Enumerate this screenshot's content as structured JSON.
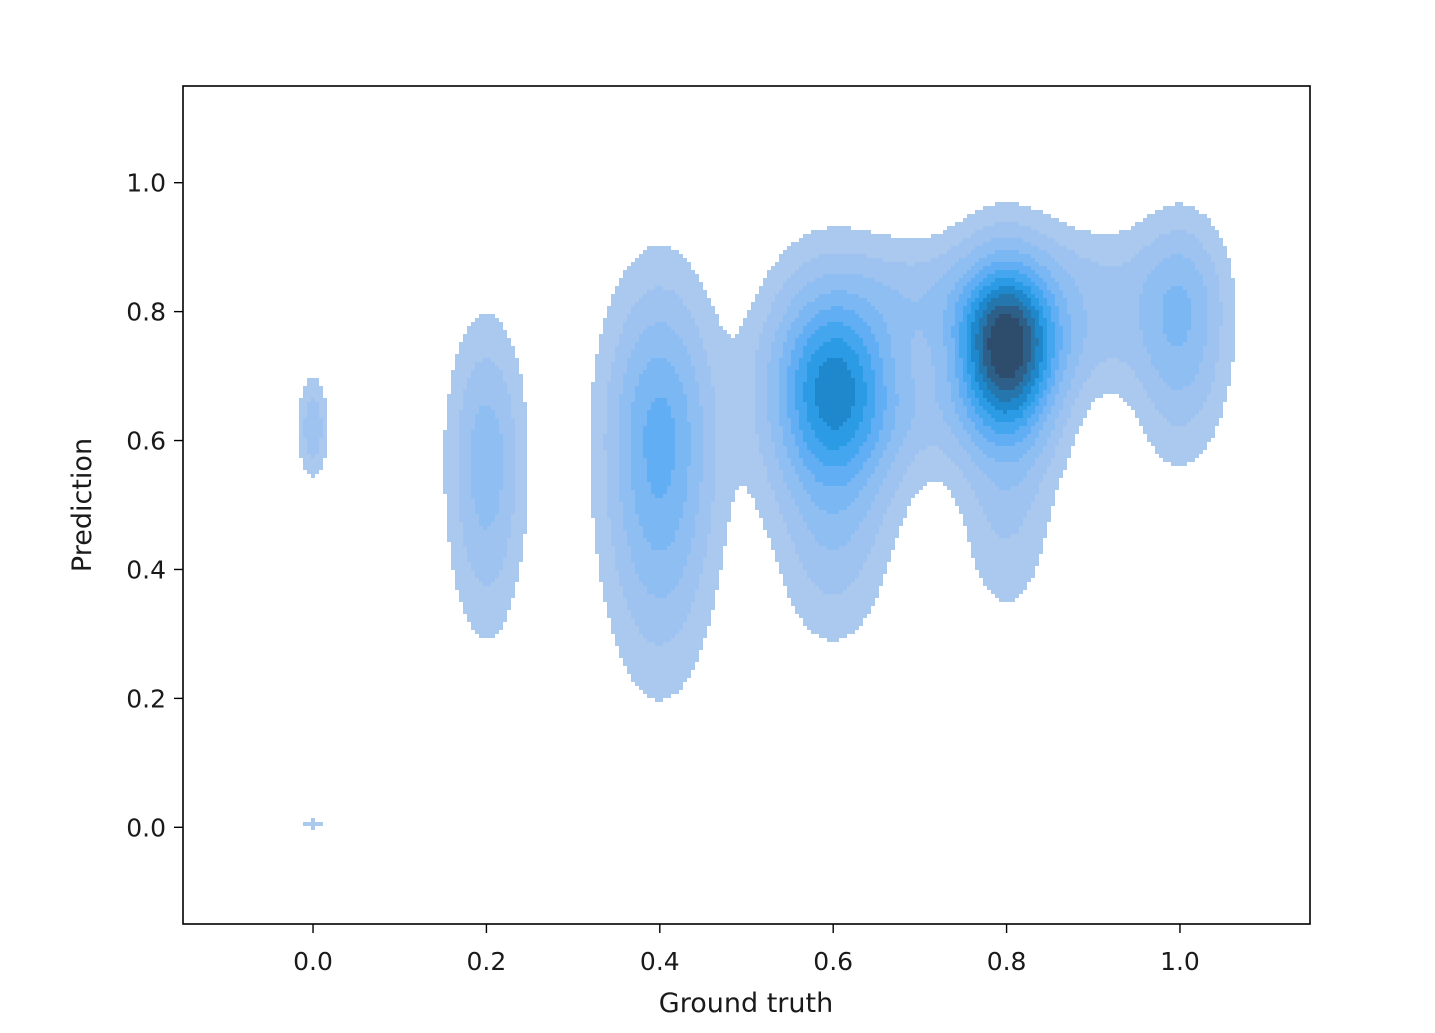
{
  "chart_data": {
    "type": "kde-density-contour",
    "xlabel": "Ground truth",
    "ylabel": "Prediction",
    "xlim": [
      -0.15,
      1.15
    ],
    "ylim": [
      -0.15,
      1.15
    ],
    "xticks": [
      "0.0",
      "0.2",
      "0.4",
      "0.6",
      "0.8",
      "1.0"
    ],
    "yticks": [
      "0.0",
      "0.2",
      "0.4",
      "0.6",
      "0.8",
      "1.0"
    ],
    "grid": false,
    "legend": "none",
    "palette": [
      "#abc8ee",
      "#9fc3f0",
      "#8ebef2",
      "#7ab7f3",
      "#62aef4",
      "#45a6f0",
      "#2b9be6",
      "#1f88cc",
      "#2476ad",
      "#2d5f88",
      "#2e4d6c"
    ],
    "clusters": [
      {
        "x": 0.0,
        "center": 0.62,
        "peak_density": 0.18
      },
      {
        "x": 0.0,
        "center": 0.005,
        "peak_density": 0.1
      },
      {
        "x": 0.2,
        "center": 0.57,
        "peak_density": 0.25
      },
      {
        "x": 0.4,
        "center": 0.6,
        "peak_density": 0.42
      },
      {
        "x": 0.6,
        "center": 0.68,
        "peak_density": 0.7
      },
      {
        "x": 0.8,
        "center": 0.75,
        "peak_density": 1.0
      },
      {
        "x": 1.0,
        "center": 0.78,
        "peak_density": 0.3
      }
    ]
  }
}
